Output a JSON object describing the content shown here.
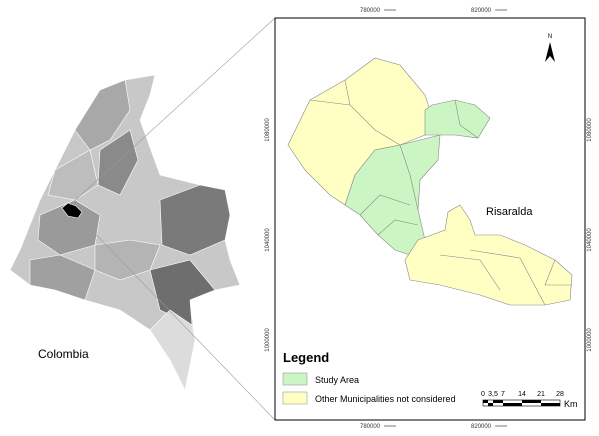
{
  "overview": {
    "label": "Colombia"
  },
  "map": {
    "label": "Risaralda",
    "north": "N",
    "grid": {
      "x_labels": [
        "780000",
        "820000"
      ],
      "y_labels": [
        "1080000",
        "1040000",
        "1000000"
      ]
    }
  },
  "legend": {
    "title": "Legend",
    "items": [
      {
        "label": "Study Area"
      },
      {
        "label": "Other Municipalities not considered"
      }
    ]
  },
  "scale_bar": {
    "labels": [
      "0",
      "3,5",
      "7",
      "14",
      "21",
      "28"
    ],
    "unit": "Km"
  }
}
